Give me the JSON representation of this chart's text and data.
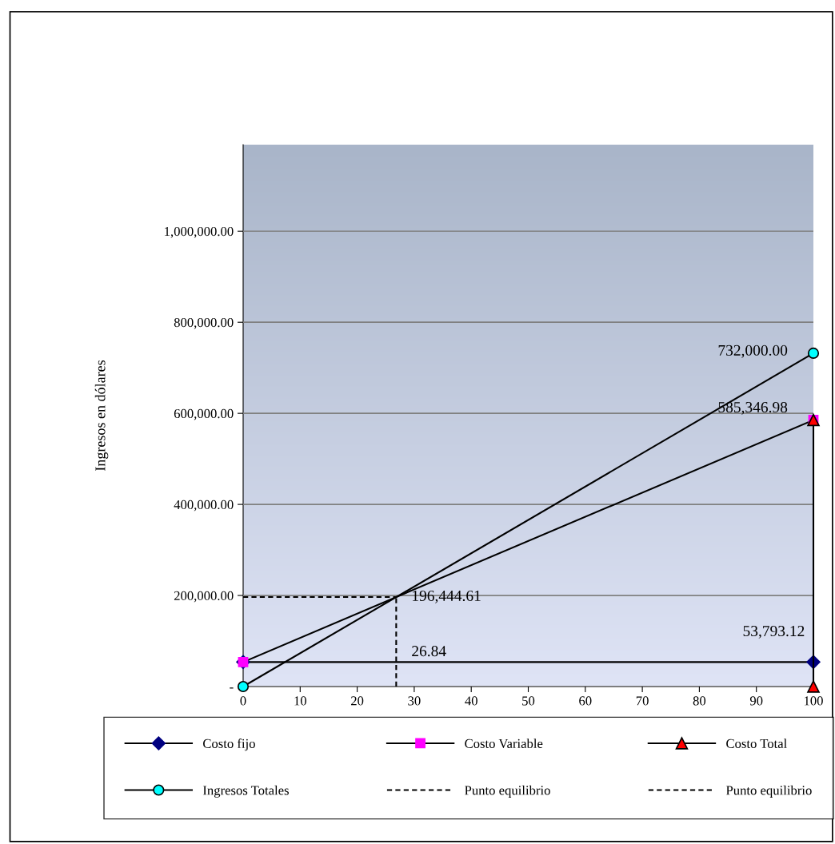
{
  "chart_data": {
    "type": "line",
    "ylabel": "Ingresos en dólares",
    "xlim": [
      0,
      100
    ],
    "xticks": [
      0,
      10,
      20,
      30,
      40,
      50,
      60,
      70,
      80,
      90,
      100
    ],
    "ylim": [
      0,
      1190000
    ],
    "yticks": [
      {
        "value": 0,
        "label": "-"
      },
      {
        "value": 200000,
        "label": "200,000.00"
      },
      {
        "value": 400000,
        "label": "400,000.00"
      },
      {
        "value": 600000,
        "label": "600,000.00"
      },
      {
        "value": 800000,
        "label": "800,000.00"
      },
      {
        "value": 1000000,
        "label": "1,000,000.00"
      }
    ],
    "grid": "y",
    "legend": "bottom",
    "series": [
      {
        "name": "Costo fijo",
        "color": "#000080",
        "marker": "diamond",
        "line_style": "solid",
        "x": [
          0,
          100
        ],
        "values": [
          53793.12,
          53793.12
        ]
      },
      {
        "name": "Costo Variable",
        "color": "#ff00ff",
        "marker": "square",
        "line_style": "solid",
        "x": [
          0,
          100
        ],
        "values": [
          53793.12,
          585346.98
        ]
      },
      {
        "name": "Costo Total",
        "color": "#ff0000",
        "marker": "triangle",
        "line_style": "solid",
        "x": [
          100,
          100
        ],
        "values": [
          0,
          585346.98
        ]
      },
      {
        "name": "Ingresos Totales",
        "color": "#00ffff",
        "marker": "circle",
        "line_style": "solid",
        "x": [
          0,
          100
        ],
        "values": [
          0,
          732000
        ]
      },
      {
        "name": "Punto equilibrio",
        "color": "#000000",
        "marker": "none",
        "line_style": "dashed",
        "x": [
          0,
          26.84
        ],
        "values": [
          196444.61,
          196444.61
        ]
      },
      {
        "name": "Punto equilibrio",
        "color": "#000000",
        "marker": "none",
        "line_style": "dashed",
        "x": [
          26.84,
          26.84
        ],
        "values": [
          0,
          196444.61
        ]
      }
    ],
    "annotations": [
      "732,000.00",
      "585,346.98",
      "196,444.61",
      "53,793.12",
      "26.84"
    ]
  }
}
